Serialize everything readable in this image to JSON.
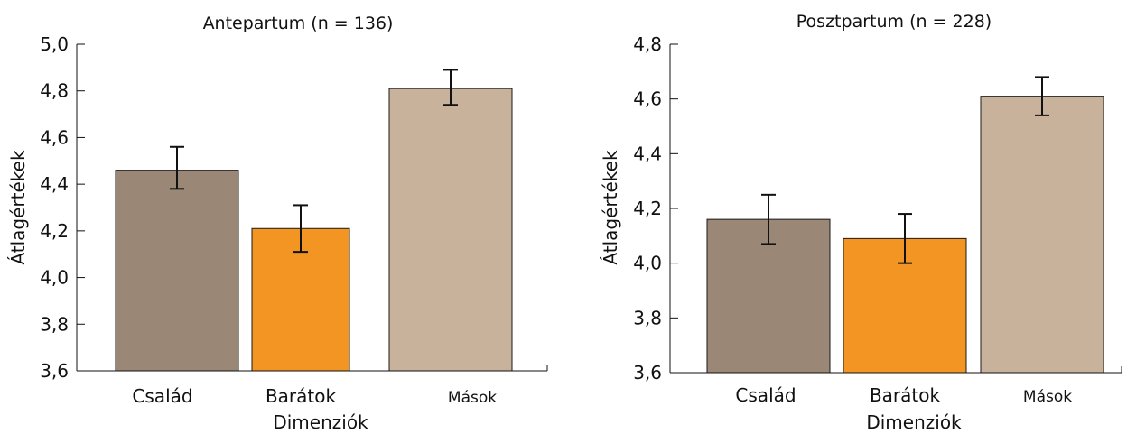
{
  "chart_data": [
    {
      "type": "bar",
      "title": "Antepartum (n = 136)",
      "xlabel": "Dimenziók",
      "ylabel": "Átlagértékek",
      "ylim": [
        3.6,
        5.0
      ],
      "ytick_labels": [
        "3,6",
        "3,8",
        "4,0",
        "4,2",
        "4,4",
        "4,6",
        "4,8",
        "5,0"
      ],
      "categories": [
        "Család",
        "Barátok",
        "Mások"
      ],
      "values": [
        4.46,
        4.21,
        4.81
      ],
      "error_low": [
        4.38,
        4.11,
        4.74
      ],
      "error_high": [
        4.56,
        4.31,
        4.89
      ],
      "colors": [
        "#9a8775",
        "#f39522",
        "#c9b29b"
      ],
      "grid": false,
      "legend": "none"
    },
    {
      "type": "bar",
      "title": "Posztpartum (n = 228)",
      "xlabel": "Dimenziók",
      "ylabel": "Átlagértékek",
      "ylim": [
        3.6,
        4.8
      ],
      "ytick_labels": [
        "3,6",
        "3,8",
        "4,0",
        "4,2",
        "4,4",
        "4,6",
        "4,8"
      ],
      "categories": [
        "Család",
        "Barátok",
        "Mások"
      ],
      "values": [
        4.16,
        4.09,
        4.61
      ],
      "error_low": [
        4.07,
        4.0,
        4.54
      ],
      "error_high": [
        4.25,
        4.18,
        4.68
      ],
      "colors": [
        "#9a8775",
        "#f39522",
        "#c9b29b"
      ],
      "grid": false,
      "legend": "none"
    }
  ]
}
